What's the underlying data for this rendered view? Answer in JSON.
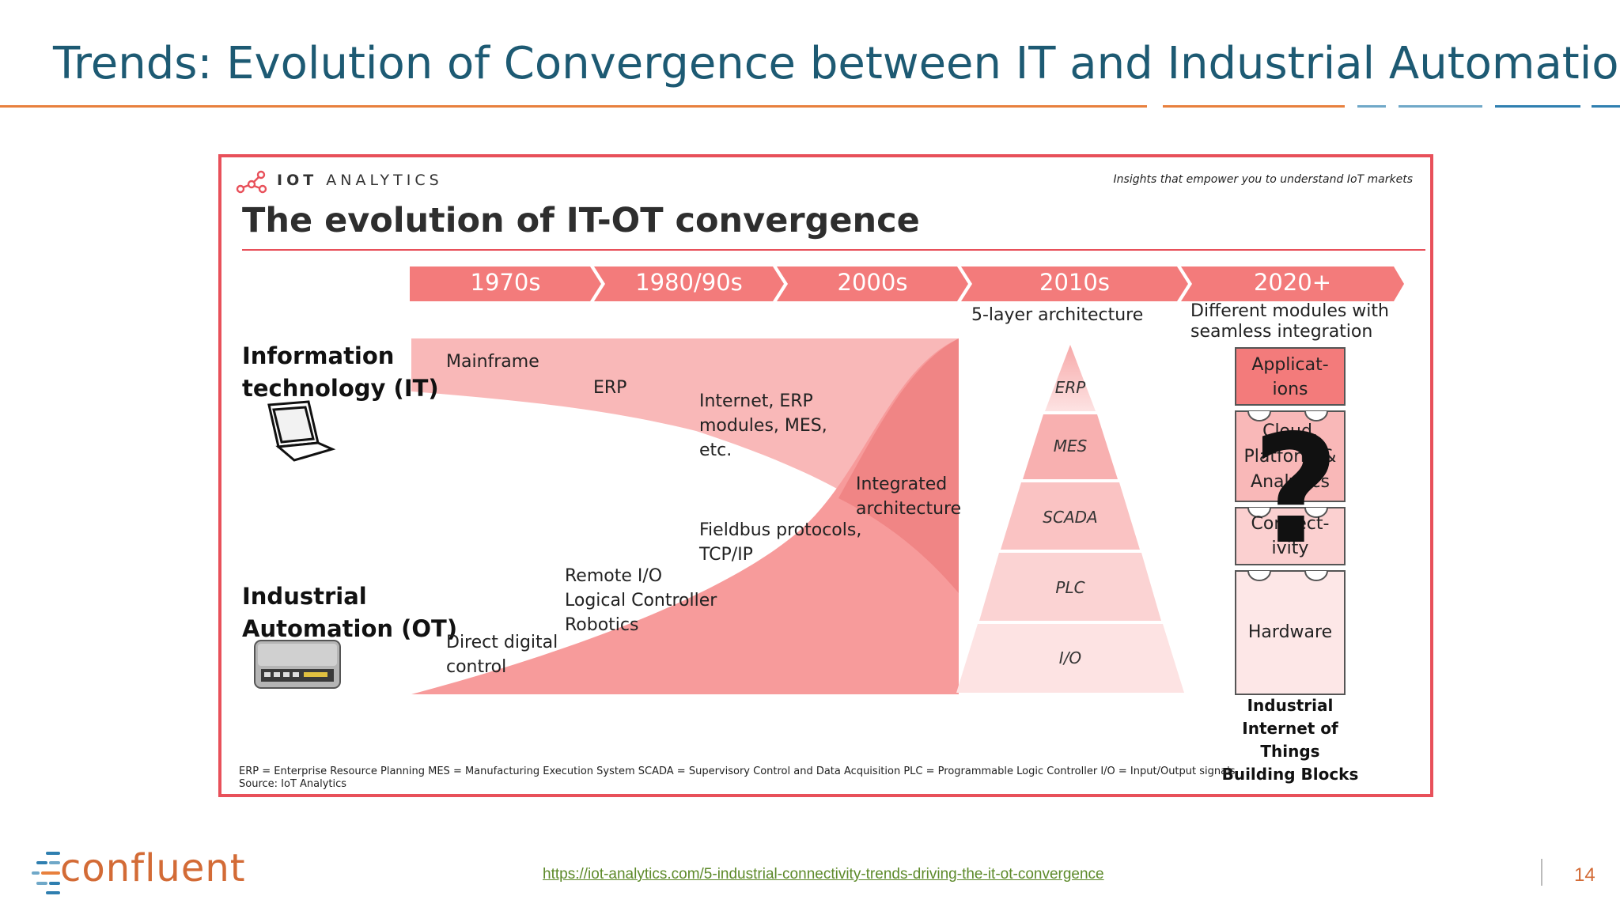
{
  "slide": {
    "title": "Trends: Evolution of Convergence between IT and Industrial Automation",
    "source_link": "https://iot-analytics.com/5-industrial-connectivity-trends-driving-the-it-ot-convergence",
    "page_number": "14",
    "logo_text": "confluent"
  },
  "infographic": {
    "brand_bold": "IOT",
    "brand_light": "ANALYTICS",
    "tagline": "Insights that empower you to understand IoT markets",
    "title": "The evolution of IT-OT convergence",
    "eras": [
      "1970s",
      "1980/90s",
      "2000s",
      "2010s",
      "2020+"
    ],
    "era_subtitle_2010s": "5-layer architecture",
    "era_subtitle_2020_line1": "Different modules with",
    "era_subtitle_2020_line2": "seamless integration",
    "it_label_line1": "Information",
    "it_label_line2": "technology (IT)",
    "ot_label_line1": "Industrial",
    "ot_label_line2": "Automation (OT)",
    "it_labels": {
      "mainframe": "Mainframe",
      "erp": "ERP",
      "internet_line1": "Internet, ERP",
      "internet_line2": "modules, MES,",
      "internet_line3": "etc."
    },
    "integrated_line1": "Integrated",
    "integrated_line2": "architecture",
    "ot_labels": {
      "ddc_line1": "Direct digital",
      "ddc_line2": "control",
      "remote_line1": "Remote I/O",
      "remote_line2": "Logical Controller",
      "remote_line3": "Robotics",
      "fieldbus_line1": "Fieldbus protocols,",
      "fieldbus_line2": "TCP/IP"
    },
    "pyramid_layers": [
      "ERP",
      "MES",
      "SCADA",
      "PLC",
      "I/O"
    ],
    "blocks": {
      "applications_line1": "Applicat-",
      "applications_line2": "ions",
      "cloud_line1": "Cloud,",
      "cloud_line2": "Platform &",
      "cloud_line3": "Analytics",
      "connectivity_line1": "Connect-",
      "connectivity_line2": "ivity",
      "hardware": "Hardware",
      "question_mark": "?"
    },
    "iiot_line1": "Industrial",
    "iiot_line2": "Internet of Things",
    "iiot_line3": "Building Blocks",
    "legend_line1": "ERP = Enterprise Resource Planning  MES = Manufacturing Execution System  SCADA = Supervisory Control and Data Acquisition  PLC = Programmable Logic Controller  I/O = Input/Output signals",
    "legend_line2": "Source: IoT Analytics"
  }
}
